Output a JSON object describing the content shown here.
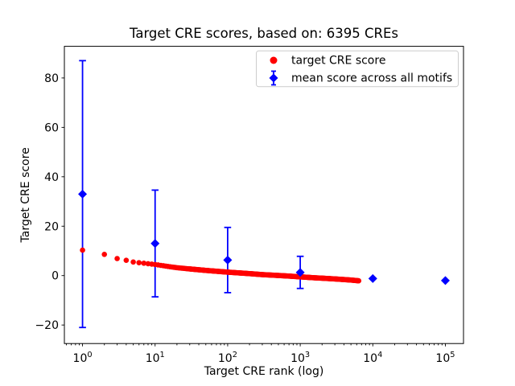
{
  "chart_data": {
    "type": "scatter",
    "title": "Target CRE scores, based on: 6395 CREs",
    "xlabel": "Target CRE rank (log)",
    "ylabel": "Target CRE score",
    "x_scale": "log",
    "y_scale": "linear",
    "xlim": [
      0.562,
      177828
    ],
    "ylim": [
      -27.5,
      92.8
    ],
    "x_ticks": [
      1,
      10,
      100,
      1000,
      10000,
      100000
    ],
    "x_tick_mantissa": "10",
    "x_tick_exponents": [
      "0",
      "1",
      "2",
      "3",
      "4",
      "5"
    ],
    "y_ticks": [
      -20,
      0,
      20,
      40,
      60,
      80
    ],
    "y_tick_labels": [
      "−20",
      "0",
      "20",
      "40",
      "60",
      "80"
    ],
    "grid": false,
    "n_cres_shown_in_title": 6395,
    "legend": {
      "location": "upper right"
    },
    "series": [
      {
        "name": "target CRE score",
        "type": "scatter",
        "color": "#ff0000",
        "marker": "circle",
        "n_points": 6395,
        "curve_control_points": {
          "rank": [
            1,
            2,
            3,
            4,
            5,
            7,
            10,
            15,
            20,
            30,
            50,
            100,
            200,
            300,
            500,
            700,
            1000,
            1500,
            2000,
            3000,
            4000,
            5000,
            6395
          ],
          "score": [
            10.3,
            8.6,
            6.9,
            6.2,
            5.5,
            5.0,
            4.5,
            3.7,
            3.2,
            2.7,
            2.1,
            1.4,
            0.8,
            0.4,
            0.05,
            -0.2,
            -0.5,
            -0.85,
            -1.05,
            -1.35,
            -1.6,
            -1.8,
            -2.1
          ]
        }
      },
      {
        "name": "mean score across all motifs",
        "type": "errorbar",
        "color": "#0000ff",
        "marker": "diamond",
        "x": [
          1,
          10,
          100,
          1000,
          10000,
          100000
        ],
        "y": [
          33.0,
          13.0,
          6.3,
          1.3,
          -1.2,
          -2.0
        ],
        "yerr": [
          54.0,
          21.6,
          13.2,
          6.5,
          0.6,
          0.6
        ]
      }
    ]
  }
}
